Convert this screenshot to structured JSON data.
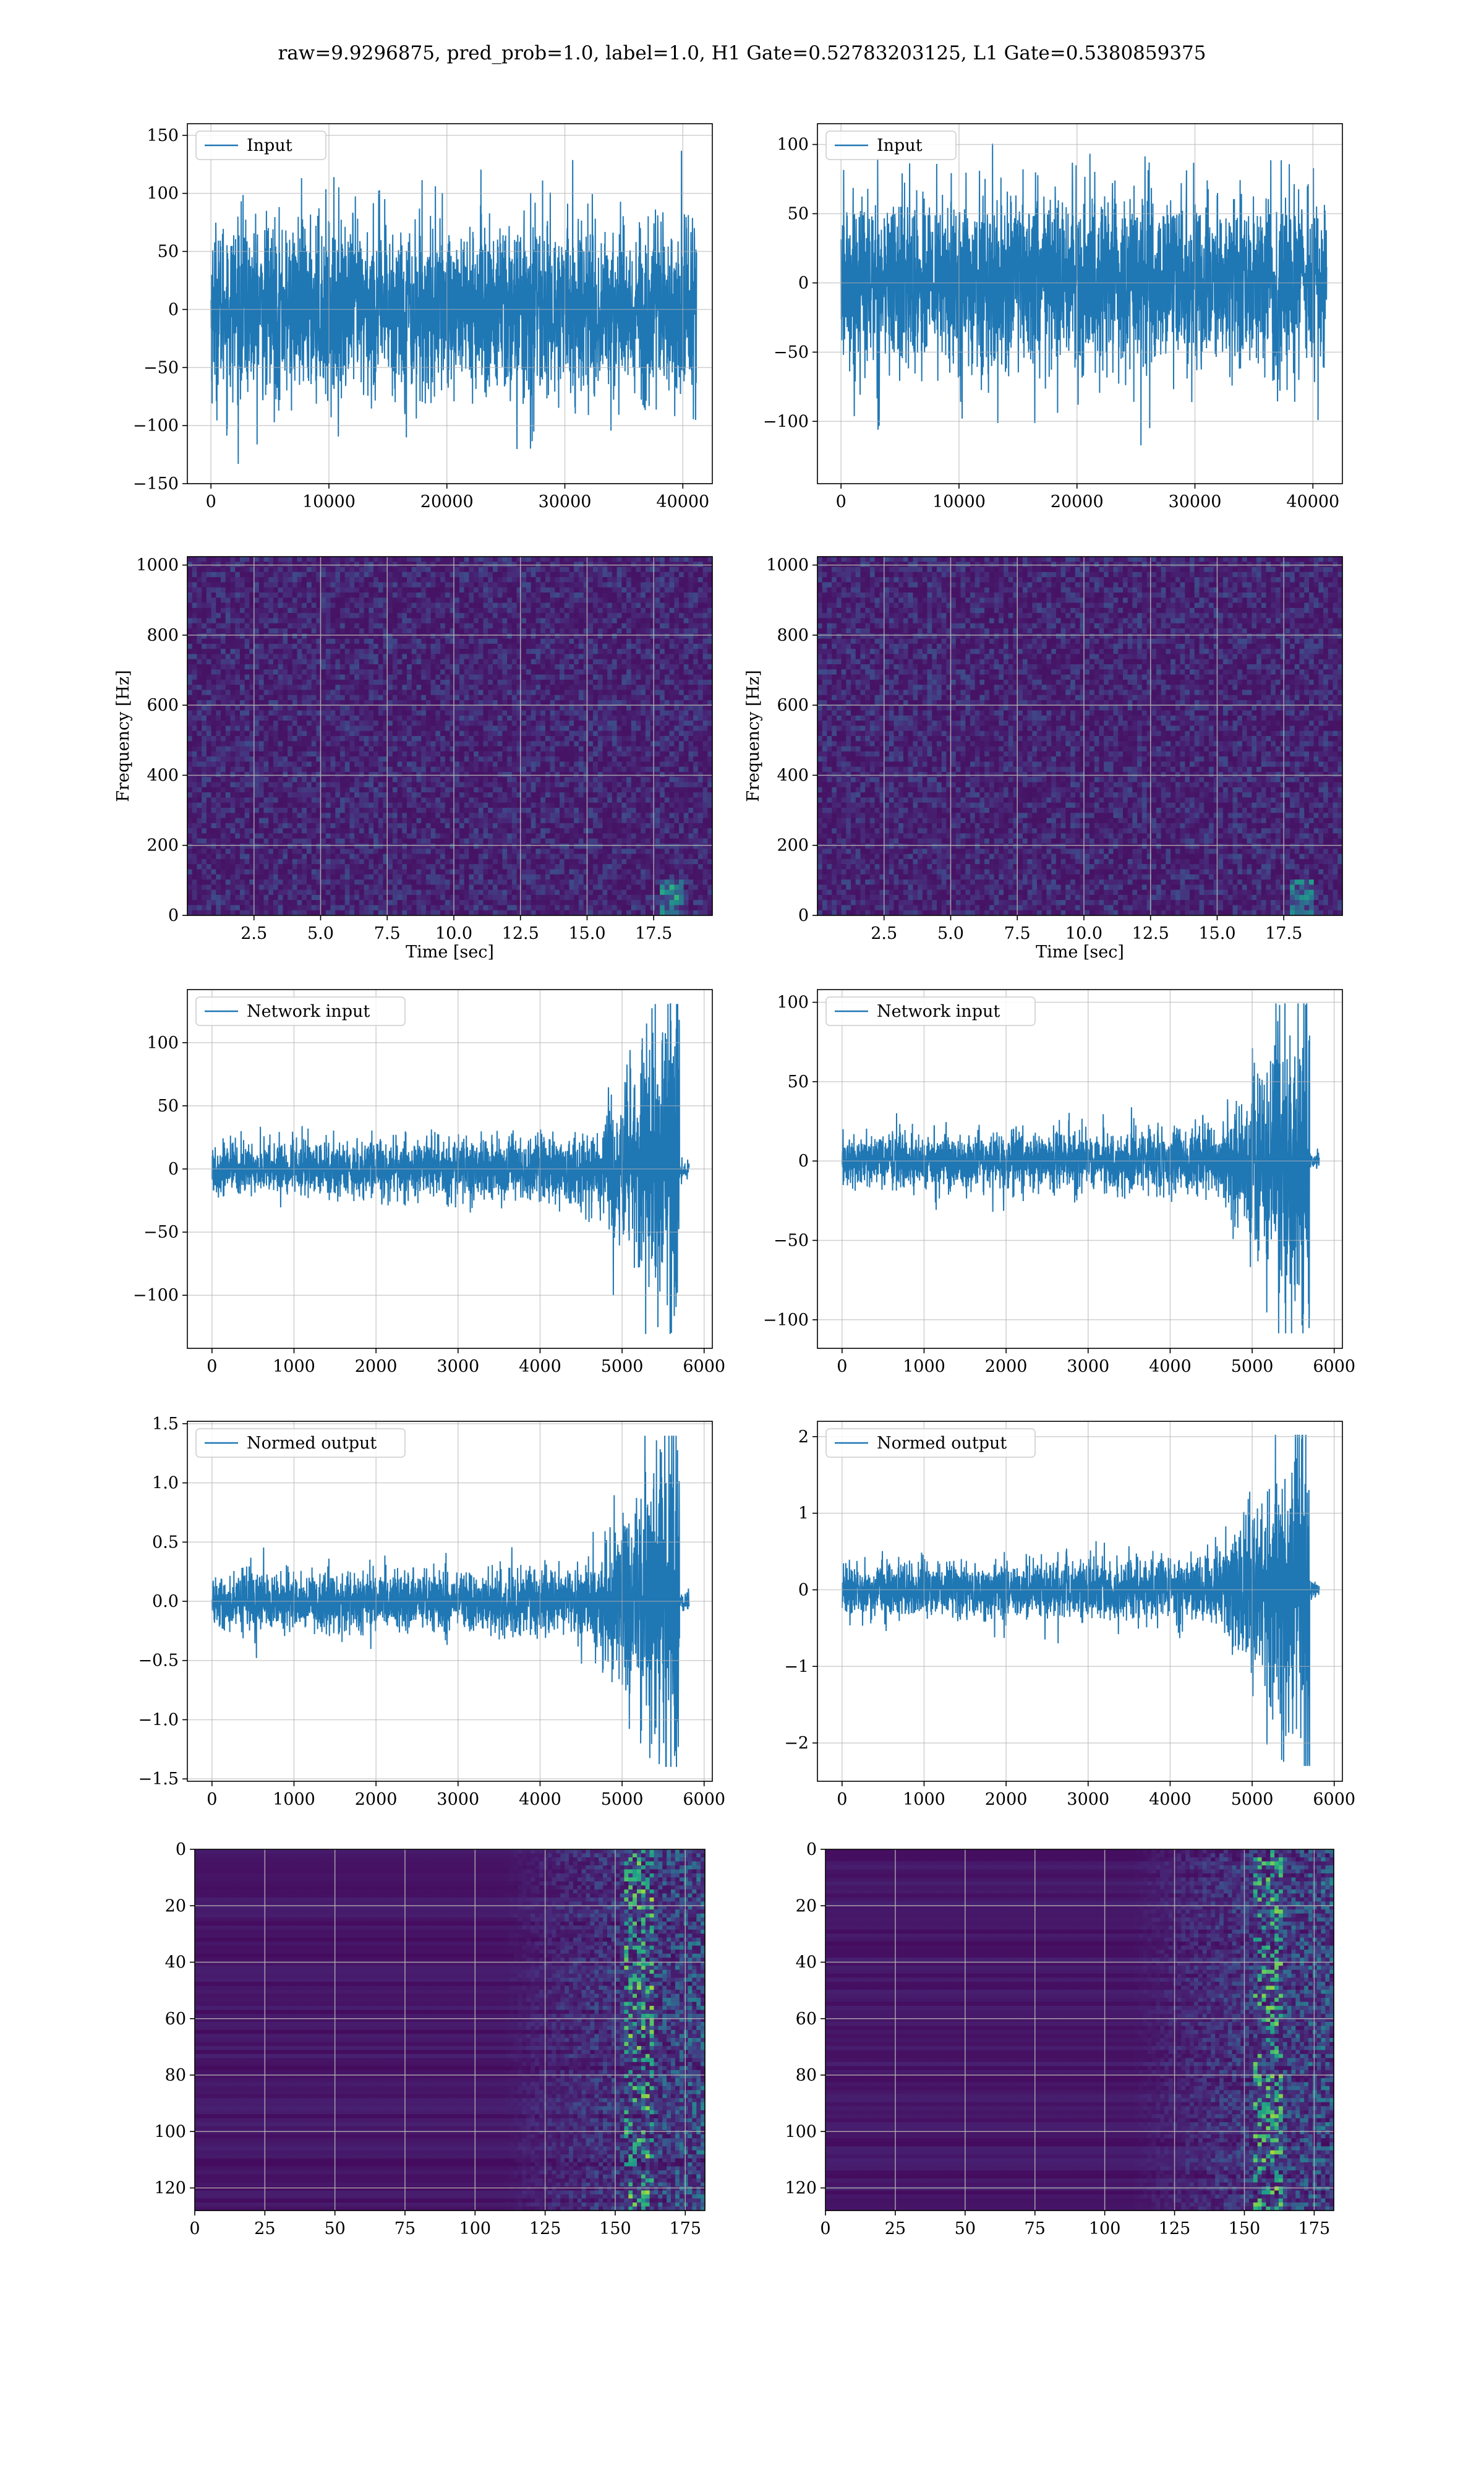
{
  "figure": {
    "suptitle": "raw=9.9296875, pred_prob=1.0, label=1.0, H1 Gate=0.52783203125, L1 Gate=0.5380859375",
    "line_color": "#1f77b4"
  },
  "chart_data": [
    {
      "id": "p00",
      "type": "line",
      "legend": "Input",
      "signal": "input",
      "xlim": [
        -2000,
        42500
      ],
      "ylim": [
        -150,
        160
      ],
      "amp": 38,
      "env": "flat",
      "xticks": [
        0,
        10000,
        20000,
        30000,
        40000
      ],
      "yticks": [
        -150,
        -100,
        -50,
        0,
        50,
        100,
        150
      ]
    },
    {
      "id": "p01",
      "type": "line",
      "legend": "Input",
      "signal": "input",
      "xlim": [
        -2000,
        42500
      ],
      "ylim": [
        -145,
        115
      ],
      "amp": 32,
      "env": "flat",
      "xticks": [
        0,
        10000,
        20000,
        30000,
        40000
      ],
      "yticks": [
        -100,
        -50,
        0,
        50,
        100
      ]
    },
    {
      "id": "p10",
      "type": "heatmap",
      "xlabel": "Time [sec]",
      "ylabel": "Frequency [Hz]",
      "xlim": [
        0,
        19.7
      ],
      "ylim": [
        0,
        1024
      ],
      "xticks": [
        2.5,
        5.0,
        7.5,
        10.0,
        12.5,
        15.0,
        17.5
      ],
      "yticks": [
        0,
        200,
        400,
        600,
        800,
        1000
      ],
      "mode": "spec"
    },
    {
      "id": "p11",
      "type": "heatmap",
      "xlabel": "Time [sec]",
      "ylabel": "Frequency [Hz]",
      "xlim": [
        0,
        19.7
      ],
      "ylim": [
        0,
        1024
      ],
      "xticks": [
        2.5,
        5.0,
        7.5,
        10.0,
        12.5,
        15.0,
        17.5
      ],
      "yticks": [
        0,
        200,
        400,
        600,
        800,
        1000
      ],
      "mode": "spec"
    },
    {
      "id": "p20",
      "type": "line",
      "legend": "Network input",
      "signal": "chirp",
      "xlim": [
        -300,
        6100
      ],
      "ylim": [
        -142,
        142
      ],
      "amp": 10,
      "env": "chirp",
      "xticks": [
        0,
        1000,
        2000,
        3000,
        4000,
        5000,
        6000
      ],
      "yticks": [
        -100,
        -50,
        0,
        50,
        100
      ]
    },
    {
      "id": "p21",
      "type": "line",
      "legend": "Network input",
      "signal": "chirp",
      "xlim": [
        -300,
        6100
      ],
      "ylim": [
        -118,
        108
      ],
      "amp": 8,
      "env": "chirp",
      "xticks": [
        0,
        1000,
        2000,
        3000,
        4000,
        5000,
        6000
      ],
      "yticks": [
        -100,
        -50,
        0,
        50,
        100
      ]
    },
    {
      "id": "p30",
      "type": "line",
      "legend": "Normed output",
      "signal": "chirp",
      "xlim": [
        -300,
        6100
      ],
      "ylim": [
        -1.52,
        1.52
      ],
      "amp": 0.11,
      "env": "chirp",
      "xticks": [
        0,
        1000,
        2000,
        3000,
        4000,
        5000,
        6000
      ],
      "yticks": [
        -1.5,
        -1.0,
        -0.5,
        0.0,
        0.5,
        1.0,
        1.5
      ]
    },
    {
      "id": "p31",
      "type": "line",
      "legend": "Normed output",
      "signal": "chirp",
      "xlim": [
        -300,
        6100
      ],
      "ylim": [
        -2.5,
        2.2
      ],
      "amp": 0.17,
      "env": "chirp",
      "xticks": [
        0,
        1000,
        2000,
        3000,
        4000,
        5000,
        6000
      ],
      "yticks": [
        -2,
        -1,
        0,
        1,
        2
      ]
    },
    {
      "id": "p40",
      "type": "heatmap",
      "xlabel": "",
      "ylabel": "",
      "xlim": [
        0,
        182
      ],
      "ylim": [
        128,
        0
      ],
      "xticks": [
        0,
        25,
        50,
        75,
        100,
        125,
        150,
        175
      ],
      "yticks": [
        0,
        20,
        40,
        60,
        80,
        100,
        120
      ],
      "mode": "features"
    },
    {
      "id": "p41",
      "type": "heatmap",
      "xlabel": "",
      "ylabel": "",
      "xlim": [
        0,
        182
      ],
      "ylim": [
        128,
        0
      ],
      "xticks": [
        0,
        25,
        50,
        75,
        100,
        125,
        150,
        175
      ],
      "yticks": [
        0,
        20,
        40,
        60,
        80,
        100,
        120
      ],
      "mode": "features"
    }
  ]
}
